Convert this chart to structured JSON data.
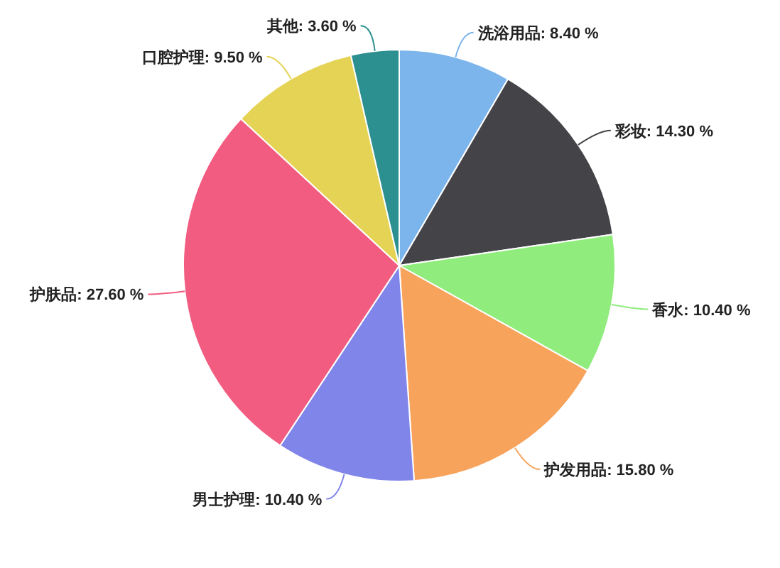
{
  "chart_data": {
    "type": "pie",
    "categories": [
      "洗浴用品",
      "彩妆",
      "香水",
      "护发用品",
      "男士护理",
      "护肤品",
      "口腔护理",
      "其他"
    ],
    "values": [
      8.4,
      14.3,
      10.4,
      15.8,
      10.4,
      27.6,
      9.5,
      3.6
    ],
    "value_labels": [
      "8.40 %",
      "14.30 %",
      "10.40 %",
      "15.80 %",
      "10.40 %",
      "27.60 %",
      "9.50 %",
      "3.60 %"
    ],
    "colors": [
      "#7cb5ec",
      "#434348",
      "#90ed7d",
      "#f7a35c",
      "#8085e9",
      "#f15c80",
      "#e4d354",
      "#2b908f"
    ]
  }
}
